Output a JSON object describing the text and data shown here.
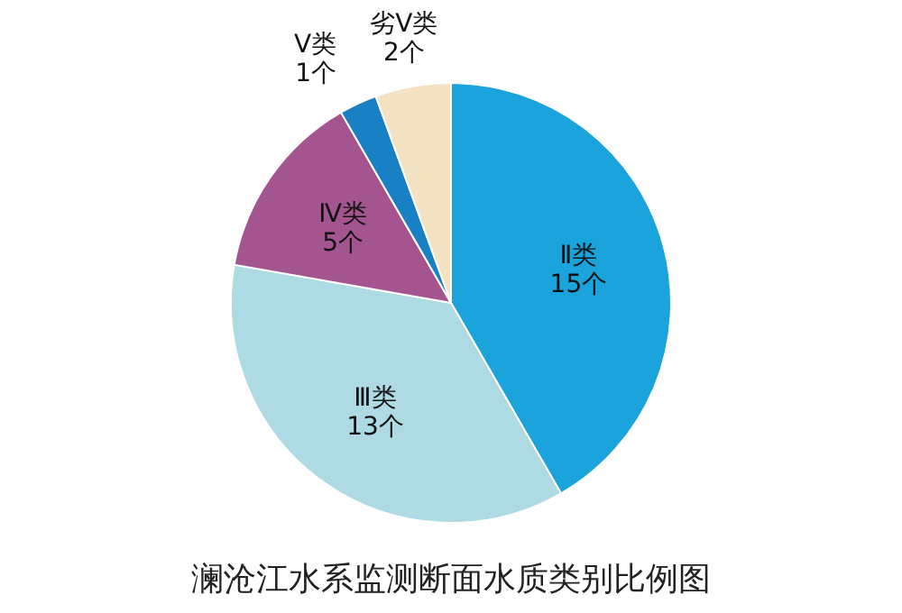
{
  "chart_data": {
    "type": "pie",
    "title": "澜沧江水系监测断面水质类别比例图",
    "categories": [
      "Ⅱ类",
      "Ⅲ类",
      "Ⅳ类",
      "Ⅴ类",
      "劣Ⅴ类"
    ],
    "values": [
      15,
      13,
      5,
      1,
      2
    ],
    "value_labels": [
      "15个",
      "13个",
      "5个",
      "1个",
      "2个"
    ],
    "colors": [
      "#1ba3dc",
      "#aedbe3",
      "#a4558f",
      "#1a80c4",
      "#f3e3c3"
    ]
  }
}
